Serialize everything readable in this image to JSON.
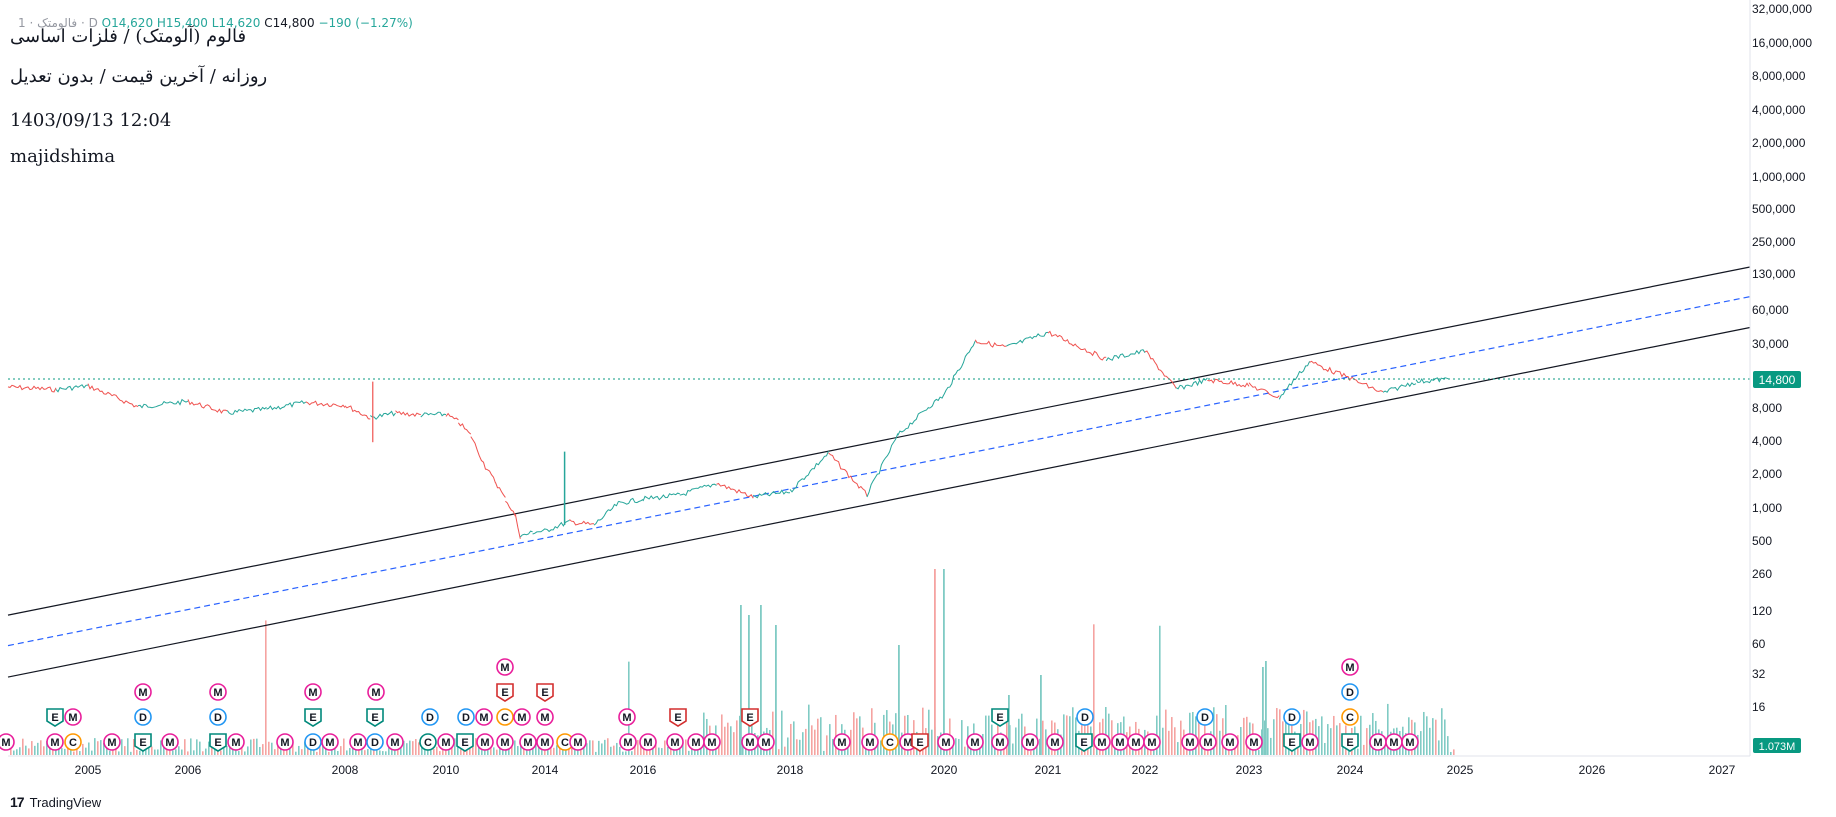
{
  "ohlc": {
    "prefix": "1 · فالومتک · D",
    "open": "O14,620",
    "high": "H15,400",
    "low": "L14,620",
    "close": "C14,800",
    "change": "−190 (−1.27%)"
  },
  "titles": {
    "line1": "فالوم (آلومتک) / فلزات اساسی",
    "line2": "روزانه / آخرین قیمت / بدون تعدیل",
    "line3": "1403/09/13 12:04",
    "line4": "majidshima"
  },
  "price_tag": "14,800",
  "volume_tag": "1.073M",
  "brand": {
    "logo": "17",
    "name": "TradingView"
  },
  "colors": {
    "up": "#26a69a",
    "down": "#ef5350",
    "channel": "#131722",
    "midline": "#2962ff",
    "last_price": "#089981",
    "earnings": "#d32f2f",
    "dividend": "#2196f3",
    "meeting": "#e91e9b",
    "capital": "#ff9800",
    "split": "#00897b"
  },
  "chart_data": {
    "type": "line",
    "yscale": "log",
    "x_ticks": [
      "2005",
      "2006",
      "2008",
      "2010",
      "2014",
      "2016",
      "2018",
      "2020",
      "2021",
      "2022",
      "2023",
      "2024",
      "2025",
      "2026",
      "2027"
    ],
    "y_ticks": [
      "32,000,000",
      "16,000,000",
      "8,000,000",
      "4,000,000",
      "2,000,000",
      "1,000,000",
      "500,000",
      "250,000",
      "130,000",
      "60,000",
      "30,000",
      "14,800",
      "8,000",
      "4,000",
      "2,000",
      "1,000",
      "500",
      "260",
      "120",
      "60",
      "32",
      "16"
    ],
    "price_series": {
      "x": [
        2004.0,
        2004.6,
        2005.0,
        2005.5,
        2006.0,
        2006.5,
        2007.0,
        2007.5,
        2008.0,
        2008.5,
        2009.0,
        2009.5,
        2010.0,
        2010.5,
        2011.0,
        2011.6,
        2012.0,
        2012.4,
        2012.8,
        2013.0,
        2013.5,
        2014.0,
        2014.5,
        2015.0,
        2015.5,
        2016.0,
        2016.5,
        2017.0,
        2017.5,
        2018.0,
        2018.5,
        2019.0,
        2019.4,
        2019.8,
        2020.0,
        2020.3,
        2020.6,
        2021.0,
        2021.3,
        2021.6,
        2022.0,
        2022.3,
        2022.6,
        2023.0,
        2023.3,
        2023.6,
        2024.0,
        2024.3,
        2024.6,
        2024.9
      ],
      "close": [
        12500,
        11800,
        12800,
        8200,
        9200,
        7200,
        7800,
        9000,
        8500,
        6500,
        7200,
        6900,
        7000,
        6000,
        4500,
        2300,
        1700,
        1200,
        850,
        550,
        600,
        620,
        750,
        700,
        1100,
        1200,
        1300,
        1650,
        1250,
        1400,
        3100,
        1300,
        4500,
        8200,
        10500,
        32000,
        28000,
        38000,
        29000,
        22000,
        26000,
        12000,
        14500,
        13000,
        10000,
        21000,
        15000,
        11000,
        14000,
        14800
      ]
    },
    "channel": {
      "upper_start": {
        "x": 2004.0,
        "y": 110
      },
      "upper_end": {
        "x": 2027.2,
        "y": 150000
      },
      "mid_start": {
        "x": 2004.0,
        "y": 58
      },
      "mid_end": {
        "x": 2027.2,
        "y": 80000
      },
      "lower_start": {
        "x": 2004.0,
        "y": 30
      },
      "lower_end": {
        "x": 2027.2,
        "y": 42000
      }
    },
    "last_price": 14800,
    "volume_peak_label": "1.073M"
  },
  "event_rows": [
    {
      "y": 742,
      "items": [
        {
          "t": "M",
          "c": "meeting",
          "x": 6
        },
        {
          "t": "M",
          "c": "meeting",
          "x": 55
        },
        {
          "t": "C",
          "c": "capital",
          "x": 73
        },
        {
          "t": "M",
          "c": "meeting",
          "x": 112
        },
        {
          "t": "E",
          "c": "split",
          "x": 143
        },
        {
          "t": "M",
          "c": "meeting",
          "x": 170
        },
        {
          "t": "E",
          "c": "split",
          "x": 218
        },
        {
          "t": "M",
          "c": "meeting",
          "x": 236
        },
        {
          "t": "M",
          "c": "meeting",
          "x": 285
        },
        {
          "t": "D",
          "c": "dividend",
          "x": 313
        },
        {
          "t": "M",
          "c": "meeting",
          "x": 330
        },
        {
          "t": "M",
          "c": "meeting",
          "x": 358
        },
        {
          "t": "D",
          "c": "dividend",
          "x": 375
        },
        {
          "t": "M",
          "c": "meeting",
          "x": 395
        },
        {
          "t": "C",
          "c": "split",
          "x": 428
        },
        {
          "t": "M",
          "c": "meeting",
          "x": 446
        },
        {
          "t": "E",
          "c": "split",
          "x": 465
        },
        {
          "t": "M",
          "c": "meeting",
          "x": 485
        },
        {
          "t": "M",
          "c": "meeting",
          "x": 505
        },
        {
          "t": "M",
          "c": "meeting",
          "x": 528
        },
        {
          "t": "M",
          "c": "meeting",
          "x": 545
        },
        {
          "t": "C",
          "c": "capital",
          "x": 565
        },
        {
          "t": "M",
          "c": "meeting",
          "x": 578
        },
        {
          "t": "M",
          "c": "meeting",
          "x": 628
        },
        {
          "t": "M",
          "c": "meeting",
          "x": 648
        },
        {
          "t": "M",
          "c": "meeting",
          "x": 675
        },
        {
          "t": "M",
          "c": "meeting",
          "x": 696
        },
        {
          "t": "M",
          "c": "meeting",
          "x": 712
        },
        {
          "t": "M",
          "c": "meeting",
          "x": 750
        },
        {
          "t": "M",
          "c": "meeting",
          "x": 766
        },
        {
          "t": "M",
          "c": "meeting",
          "x": 842
        },
        {
          "t": "M",
          "c": "meeting",
          "x": 870
        },
        {
          "t": "C",
          "c": "capital",
          "x": 890
        },
        {
          "t": "M",
          "c": "meeting",
          "x": 908
        },
        {
          "t": "E",
          "c": "earnings",
          "x": 920
        },
        {
          "t": "M",
          "c": "meeting",
          "x": 946
        },
        {
          "t": "M",
          "c": "meeting",
          "x": 975
        },
        {
          "t": "M",
          "c": "meeting",
          "x": 1000
        },
        {
          "t": "M",
          "c": "meeting",
          "x": 1030
        },
        {
          "t": "M",
          "c": "meeting",
          "x": 1055
        },
        {
          "t": "E",
          "c": "split",
          "x": 1084
        },
        {
          "t": "M",
          "c": "meeting",
          "x": 1102
        },
        {
          "t": "M",
          "c": "meeting",
          "x": 1120
        },
        {
          "t": "M",
          "c": "meeting",
          "x": 1136
        },
        {
          "t": "M",
          "c": "meeting",
          "x": 1152
        },
        {
          "t": "M",
          "c": "meeting",
          "x": 1190
        },
        {
          "t": "M",
          "c": "meeting",
          "x": 1208
        },
        {
          "t": "M",
          "c": "meeting",
          "x": 1230
        },
        {
          "t": "M",
          "c": "meeting",
          "x": 1254
        },
        {
          "t": "E",
          "c": "split",
          "x": 1292
        },
        {
          "t": "M",
          "c": "meeting",
          "x": 1310
        },
        {
          "t": "E",
          "c": "split",
          "x": 1350
        },
        {
          "t": "M",
          "c": "meeting",
          "x": 1378
        },
        {
          "t": "M",
          "c": "meeting",
          "x": 1394
        },
        {
          "t": "M",
          "c": "meeting",
          "x": 1410
        }
      ]
    },
    {
      "y": 717,
      "items": [
        {
          "t": "E",
          "c": "split",
          "x": 55
        },
        {
          "t": "M",
          "c": "meeting",
          "x": 73
        },
        {
          "t": "D",
          "c": "dividend",
          "x": 143
        },
        {
          "t": "D",
          "c": "dividend",
          "x": 218
        },
        {
          "t": "E",
          "c": "split",
          "x": 313
        },
        {
          "t": "E",
          "c": "split",
          "x": 375
        },
        {
          "t": "D",
          "c": "dividend",
          "x": 430
        },
        {
          "t": "D",
          "c": "dividend",
          "x": 466
        },
        {
          "t": "M",
          "c": "meeting",
          "x": 484
        },
        {
          "t": "C",
          "c": "capital",
          "x": 505
        },
        {
          "t": "M",
          "c": "meeting",
          "x": 522
        },
        {
          "t": "M",
          "c": "meeting",
          "x": 545
        },
        {
          "t": "M",
          "c": "meeting",
          "x": 627
        },
        {
          "t": "E",
          "c": "earnings",
          "x": 678
        },
        {
          "t": "E",
          "c": "earnings",
          "x": 750
        },
        {
          "t": "E",
          "c": "split",
          "x": 1000
        },
        {
          "t": "D",
          "c": "dividend",
          "x": 1085
        },
        {
          "t": "D",
          "c": "dividend",
          "x": 1205
        },
        {
          "t": "D",
          "c": "dividend",
          "x": 1292
        },
        {
          "t": "C",
          "c": "capital",
          "x": 1350
        }
      ]
    },
    {
      "y": 692,
      "items": [
        {
          "t": "M",
          "c": "meeting",
          "x": 143
        },
        {
          "t": "M",
          "c": "meeting",
          "x": 218
        },
        {
          "t": "M",
          "c": "meeting",
          "x": 313
        },
        {
          "t": "M",
          "c": "meeting",
          "x": 376
        },
        {
          "t": "E",
          "c": "earnings",
          "x": 505
        },
        {
          "t": "E",
          "c": "earnings",
          "x": 545
        },
        {
          "t": "D",
          "c": "dividend",
          "x": 1350
        }
      ]
    },
    {
      "y": 667,
      "items": [
        {
          "t": "M",
          "c": "meeting",
          "x": 505
        },
        {
          "t": "M",
          "c": "meeting",
          "x": 1350
        }
      ]
    }
  ]
}
